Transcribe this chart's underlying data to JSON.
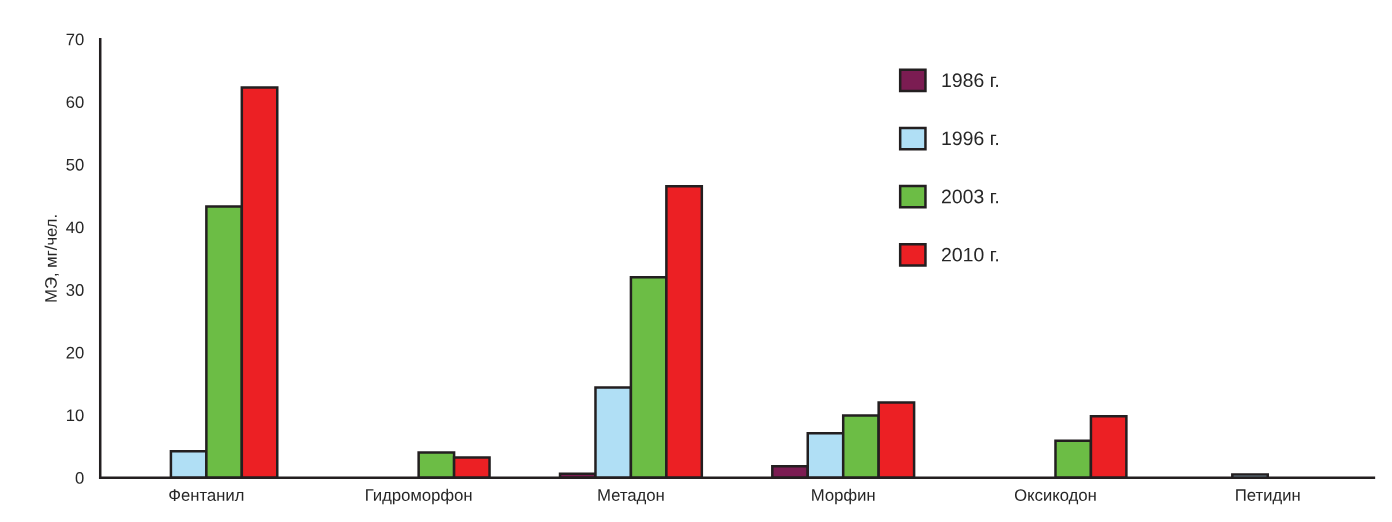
{
  "chart_data": {
    "type": "bar",
    "ylabel": "МЭ, мг/чел.",
    "categories": [
      "Фентанил",
      "Гидроморфон",
      "Метадон",
      "Морфин",
      "Оксикодон",
      "Петидин"
    ],
    "series": [
      {
        "name": "1986 г.",
        "color": "#7b1c52",
        "values": [
          null,
          null,
          0.6,
          1.8,
          null,
          null
        ]
      },
      {
        "name": "1996 г.",
        "color": "#b0dff5",
        "values": [
          4.2,
          null,
          14.4,
          7.1,
          null,
          0.5
        ]
      },
      {
        "name": "2003 г.",
        "color": "#6cbd45",
        "values": [
          43.3,
          4.0,
          32.0,
          9.9,
          5.9,
          null
        ]
      },
      {
        "name": "2010 г.",
        "color": "#ec2024",
        "values": [
          62.3,
          3.2,
          46.5,
          12.0,
          9.8,
          null
        ]
      }
    ],
    "ylim": [
      0,
      70
    ],
    "yticks": [
      0,
      10,
      20,
      30,
      40,
      50,
      60,
      70
    ],
    "grid": false,
    "legend": "top right"
  }
}
